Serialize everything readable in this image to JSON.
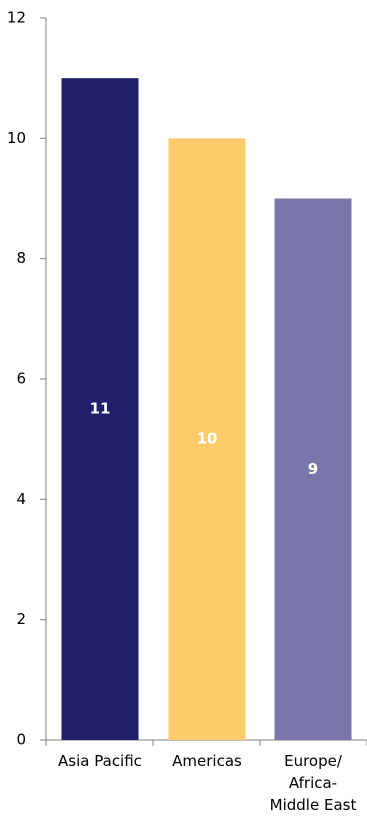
{
  "chart_data": {
    "type": "bar",
    "categories": [
      "Asia Pacific",
      "Americas",
      "Europe/\nAfrica-\nMiddle East"
    ],
    "values": [
      11,
      10,
      9
    ],
    "data_labels": [
      "11",
      "10",
      "9"
    ],
    "colors": [
      "#1f1f6b",
      "#fccb6a",
      "#7a76ab"
    ],
    "data_label_color": "#ffffff",
    "yticks": [
      0,
      2,
      4,
      6,
      8,
      10,
      12
    ],
    "ylim": [
      0,
      12
    ],
    "title": "",
    "xlabel": "",
    "ylabel": "",
    "grid": false,
    "legend": "none"
  }
}
